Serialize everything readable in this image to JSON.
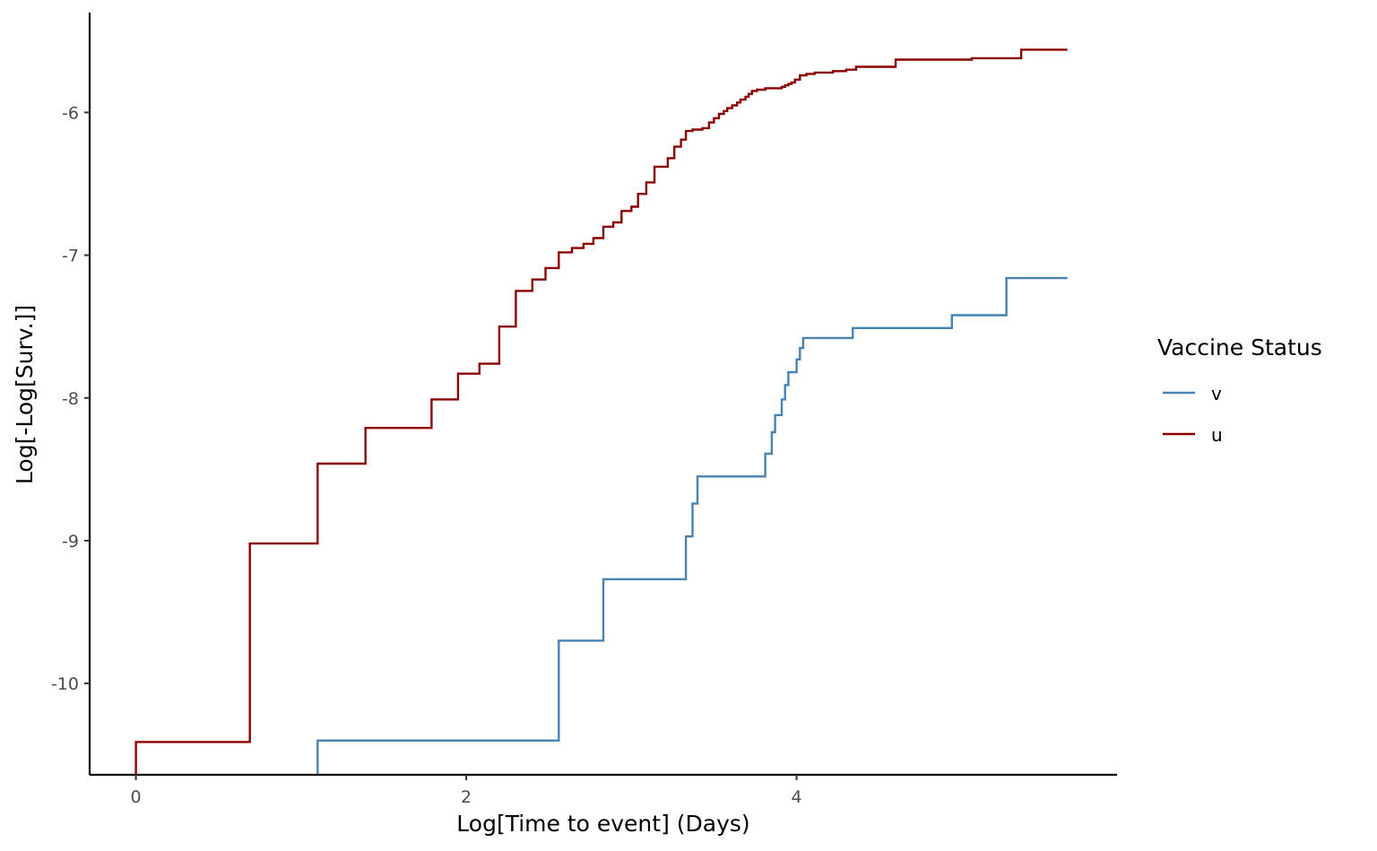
{
  "chart_data": {
    "type": "line",
    "step": true,
    "xlabel": "Log[Time to event] (Days)",
    "ylabel": "Log[-Log[Surv.]]",
    "xlim": [
      -0.28,
      5.94
    ],
    "ylim": [
      -10.64,
      -5.3
    ],
    "x_ticks": [
      0,
      2,
      4
    ],
    "x_tick_labels": [
      "0",
      "2",
      "4"
    ],
    "y_ticks": [
      -10,
      -9,
      -8,
      -7,
      -6
    ],
    "y_tick_labels": [
      "-10",
      "-9",
      "-8",
      "-7",
      "-6"
    ],
    "grid": false,
    "legend": {
      "title": "Vaccine Status",
      "position": "right",
      "entries": [
        "v",
        "u"
      ]
    },
    "series": [
      {
        "name": "v",
        "color": "#4682B4",
        "points": [
          [
            1.1,
            -10.4
          ],
          [
            2.56,
            -9.7
          ],
          [
            2.83,
            -9.27
          ],
          [
            3.33,
            -8.97
          ],
          [
            3.37,
            -8.74
          ],
          [
            3.4,
            -8.55
          ],
          [
            3.81,
            -8.39
          ],
          [
            3.85,
            -8.24
          ],
          [
            3.87,
            -8.12
          ],
          [
            3.91,
            -8.01
          ],
          [
            3.93,
            -7.91
          ],
          [
            3.95,
            -7.82
          ],
          [
            4.0,
            -7.73
          ],
          [
            4.02,
            -7.65
          ],
          [
            4.04,
            -7.58
          ],
          [
            4.34,
            -7.51
          ],
          [
            4.94,
            -7.42
          ],
          [
            5.27,
            -7.16
          ],
          [
            5.64,
            -7.16
          ]
        ]
      },
      {
        "name": "u",
        "color": "#8B0000",
        "points": [
          [
            0.0,
            -10.41
          ],
          [
            0.69,
            -9.02
          ],
          [
            1.1,
            -8.46
          ],
          [
            1.39,
            -8.21
          ],
          [
            1.79,
            -8.01
          ],
          [
            1.95,
            -7.83
          ],
          [
            2.08,
            -7.76
          ],
          [
            2.2,
            -7.5
          ],
          [
            2.3,
            -7.25
          ],
          [
            2.4,
            -7.17
          ],
          [
            2.48,
            -7.09
          ],
          [
            2.56,
            -6.98
          ],
          [
            2.64,
            -6.95
          ],
          [
            2.71,
            -6.92
          ],
          [
            2.77,
            -6.88
          ],
          [
            2.83,
            -6.8
          ],
          [
            2.89,
            -6.77
          ],
          [
            2.94,
            -6.69
          ],
          [
            3.0,
            -6.66
          ],
          [
            3.04,
            -6.57
          ],
          [
            3.09,
            -6.49
          ],
          [
            3.14,
            -6.38
          ],
          [
            3.22,
            -6.32
          ],
          [
            3.26,
            -6.24
          ],
          [
            3.3,
            -6.19
          ],
          [
            3.33,
            -6.13
          ],
          [
            3.37,
            -6.12
          ],
          [
            3.43,
            -6.11
          ],
          [
            3.47,
            -6.07
          ],
          [
            3.5,
            -6.04
          ],
          [
            3.53,
            -6.01
          ],
          [
            3.56,
            -5.99
          ],
          [
            3.58,
            -5.97
          ],
          [
            3.61,
            -5.95
          ],
          [
            3.64,
            -5.93
          ],
          [
            3.66,
            -5.91
          ],
          [
            3.69,
            -5.89
          ],
          [
            3.71,
            -5.87
          ],
          [
            3.73,
            -5.85
          ],
          [
            3.76,
            -5.84
          ],
          [
            3.81,
            -5.83
          ],
          [
            3.87,
            -5.83
          ],
          [
            3.91,
            -5.82
          ],
          [
            3.93,
            -5.81
          ],
          [
            3.95,
            -5.8
          ],
          [
            3.97,
            -5.79
          ],
          [
            3.99,
            -5.77
          ],
          [
            4.02,
            -5.74
          ],
          [
            4.06,
            -5.73
          ],
          [
            4.08,
            -5.73
          ],
          [
            4.11,
            -5.72
          ],
          [
            4.22,
            -5.71
          ],
          [
            4.3,
            -5.7
          ],
          [
            4.36,
            -5.68
          ],
          [
            4.52,
            -5.68
          ],
          [
            4.6,
            -5.65
          ],
          [
            4.6,
            -5.63
          ],
          [
            5.01,
            -5.63
          ],
          [
            5.06,
            -5.62
          ],
          [
            5.36,
            -5.56
          ],
          [
            5.64,
            -5.56
          ]
        ]
      }
    ]
  }
}
